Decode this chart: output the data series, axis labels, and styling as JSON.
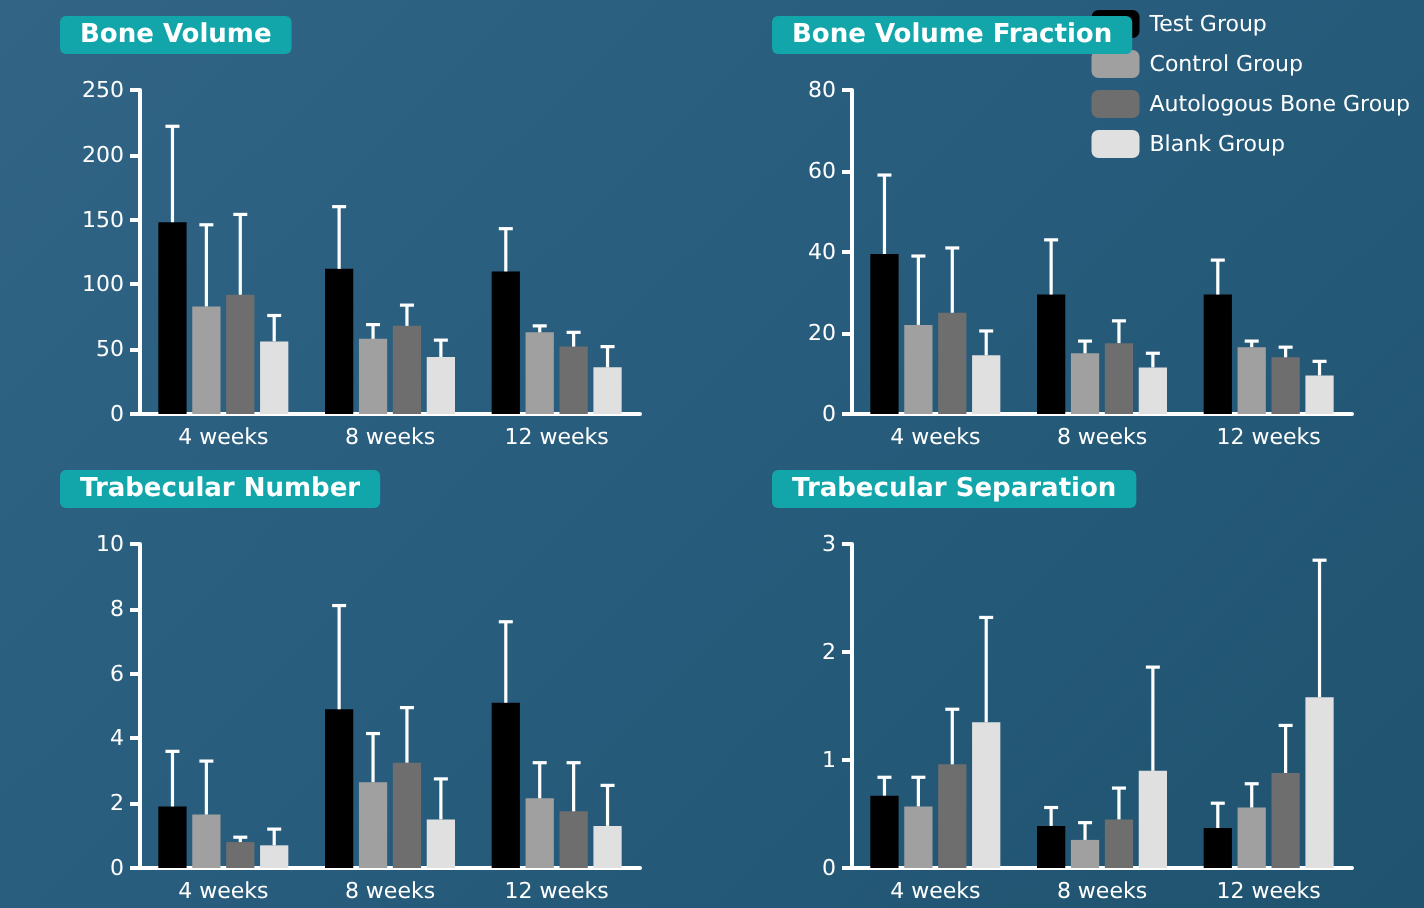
{
  "chart_data": [
    {
      "type": "bar",
      "title": "Bone Volume",
      "categories": [
        "4 weeks",
        "8 weeks",
        "12 weeks"
      ],
      "ylim": [
        0,
        250
      ],
      "yticks": [
        0,
        50,
        100,
        150,
        200,
        250
      ],
      "grid": false,
      "series": [
        {
          "color": "#000000",
          "values": [
            148,
            112,
            110
          ],
          "errors": [
            [
              148,
              222
            ],
            [
              112,
              160
            ],
            [
              110,
              143
            ]
          ]
        },
        {
          "color": "#a0a0a0",
          "values": [
            83,
            58,
            63
          ],
          "errors": [
            [
              83,
              146
            ],
            [
              58,
              69
            ],
            [
              63,
              68
            ]
          ]
        },
        {
          "color": "#6e6e6e",
          "values": [
            92,
            68,
            52
          ],
          "errors": [
            [
              92,
              154
            ],
            [
              68,
              84
            ],
            [
              52,
              63
            ]
          ]
        },
        {
          "color": "#e0e0e0",
          "values": [
            56,
            44,
            36
          ],
          "errors": [
            [
              56,
              76
            ],
            [
              44,
              57
            ],
            [
              36,
              52
            ]
          ]
        }
      ]
    },
    {
      "type": "bar",
      "title": "Bone Volume Fraction",
      "categories": [
        "4 weeks",
        "8 weeks",
        "12 weeks"
      ],
      "ylim": [
        0,
        80
      ],
      "yticks": [
        0,
        20,
        40,
        60,
        80
      ],
      "grid": false,
      "legend": "top right",
      "series": [
        {
          "name": "Test Group",
          "color": "#000000",
          "values": [
            39.5,
            29.5,
            29.5
          ],
          "errors": [
            [
              39.5,
              59
            ],
            [
              29.5,
              43
            ],
            [
              29.5,
              38
            ]
          ]
        },
        {
          "name": "Control Group",
          "color": "#a0a0a0",
          "values": [
            22,
            15,
            16.5
          ],
          "errors": [
            [
              22,
              39
            ],
            [
              15,
              18
            ],
            [
              16.5,
              18
            ]
          ]
        },
        {
          "name": "Autologous Bone Group",
          "color": "#6e6e6e",
          "values": [
            25,
            17.5,
            14
          ],
          "errors": [
            [
              25,
              41
            ],
            [
              17.5,
              23
            ],
            [
              14,
              16.5
            ]
          ]
        },
        {
          "name": "Blank Group",
          "color": "#e0e0e0",
          "values": [
            14.5,
            11.5,
            9.5
          ],
          "errors": [
            [
              14.5,
              20.5
            ],
            [
              11.5,
              15
            ],
            [
              9.5,
              13
            ]
          ]
        }
      ]
    },
    {
      "type": "bar",
      "title": "Trabecular Number",
      "categories": [
        "4 weeks",
        "8 weeks",
        "12 weeks"
      ],
      "ylim": [
        0,
        10
      ],
      "yticks": [
        0,
        2,
        4,
        6,
        8,
        10
      ],
      "grid": false,
      "series": [
        {
          "color": "#000000",
          "values": [
            1.9,
            4.9,
            5.1
          ],
          "errors": [
            [
              1.9,
              3.6
            ],
            [
              4.9,
              8.1
            ],
            [
              5.1,
              7.6
            ]
          ]
        },
        {
          "color": "#a0a0a0",
          "values": [
            1.65,
            2.65,
            2.15
          ],
          "errors": [
            [
              1.65,
              3.3
            ],
            [
              2.65,
              4.15
            ],
            [
              2.15,
              3.25
            ]
          ]
        },
        {
          "color": "#6e6e6e",
          "values": [
            0.8,
            3.25,
            1.75
          ],
          "errors": [
            [
              0.8,
              0.95
            ],
            [
              3.25,
              4.95
            ],
            [
              1.75,
              3.25
            ]
          ]
        },
        {
          "color": "#e0e0e0",
          "values": [
            0.7,
            1.5,
            1.3
          ],
          "errors": [
            [
              0.7,
              1.2
            ],
            [
              1.5,
              2.75
            ],
            [
              1.3,
              2.55
            ]
          ]
        }
      ]
    },
    {
      "type": "bar",
      "title": "Trabecular Separation",
      "categories": [
        "4 weeks",
        "8 weeks",
        "12 weeks"
      ],
      "ylim": [
        0,
        3
      ],
      "yticks": [
        0,
        1,
        2,
        3
      ],
      "grid": false,
      "series": [
        {
          "color": "#000000",
          "values": [
            0.67,
            0.39,
            0.37
          ],
          "errors": [
            [
              0.67,
              0.84
            ],
            [
              0.39,
              0.56
            ],
            [
              0.37,
              0.6
            ]
          ]
        },
        {
          "color": "#a0a0a0",
          "values": [
            0.57,
            0.26,
            0.56
          ],
          "errors": [
            [
              0.57,
              0.84
            ],
            [
              0.26,
              0.42
            ],
            [
              0.56,
              0.78
            ]
          ]
        },
        {
          "color": "#6e6e6e",
          "values": [
            0.96,
            0.45,
            0.88
          ],
          "errors": [
            [
              0.96,
              1.47
            ],
            [
              0.45,
              0.74
            ],
            [
              0.88,
              1.32
            ]
          ]
        },
        {
          "color": "#e0e0e0",
          "values": [
            1.35,
            0.9,
            1.58
          ],
          "errors": [
            [
              1.35,
              2.32
            ],
            [
              0.9,
              1.86
            ],
            [
              1.58,
              2.85
            ]
          ]
        }
      ]
    }
  ]
}
